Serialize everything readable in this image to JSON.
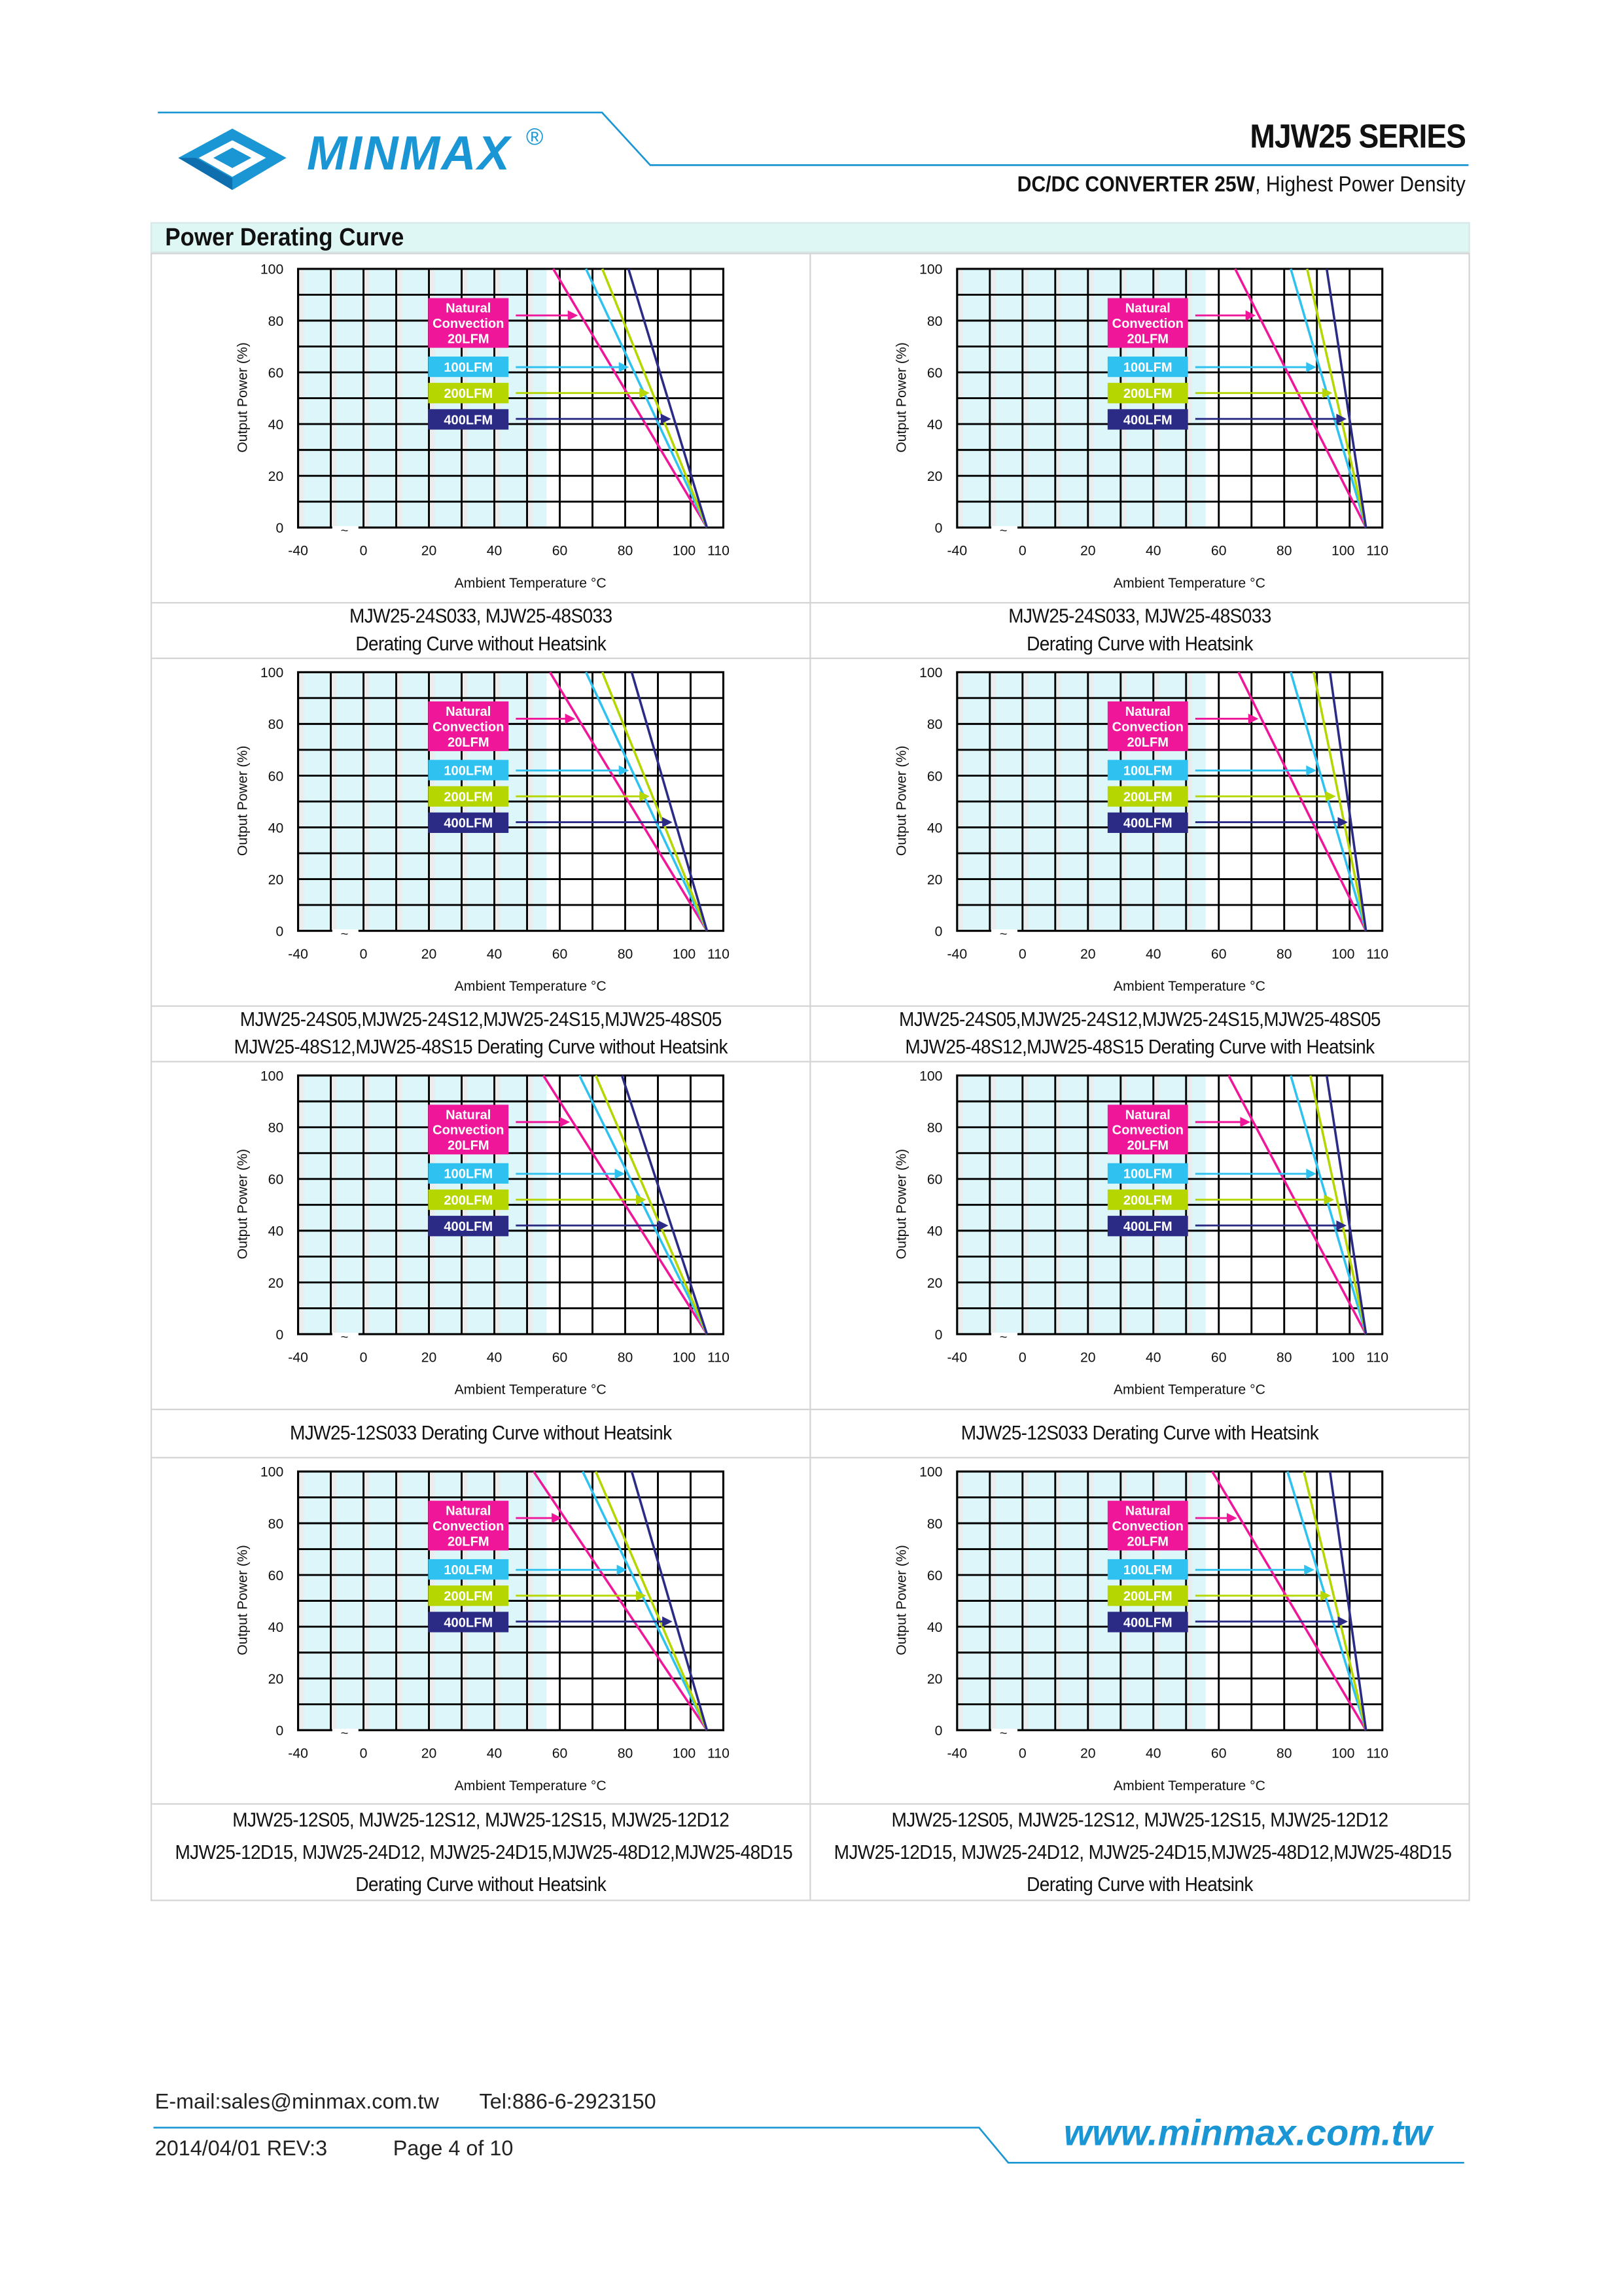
{
  "header": {
    "brand": "MINMAX",
    "registered": "®",
    "series_title": "MJW25 SERIES",
    "subtitle_bold": "DC/DC CONVERTER 25W",
    "subtitle_rest": ", Highest Power Density"
  },
  "section_title": "Power Derating Curve",
  "colors": {
    "brand": "#1a96d4",
    "natural": "#f0169a",
    "lfm100": "#2fc2f0",
    "lfm200": "#b5d600",
    "lfm400": "#2b2b85",
    "section_bg": "#dff7f4"
  },
  "chart_data": [
    {
      "type": "line",
      "caption": [
        "MJW25-24S033, MJW25-48S033",
        "Derating Curve without Heatsink"
      ],
      "full_load_limits": [
        58,
        68,
        73,
        81
      ],
      "derating_end": 105
    },
    {
      "type": "line",
      "caption": [
        "MJW25-24S033, MJW25-48S033",
        "Derating Curve with Heatsink"
      ],
      "full_load_limits": [
        65,
        82,
        87,
        93
      ],
      "derating_end": 105
    },
    {
      "type": "line",
      "caption": [
        "MJW25-24S05,MJW25-24S12,MJW25-24S15,MJW25-48S05",
        "MJW25-48S12,MJW25-48S15 Derating Curve without Heatsink"
      ],
      "full_load_limits": [
        57,
        68,
        73,
        82
      ],
      "derating_end": 105
    },
    {
      "type": "line",
      "caption": [
        "MJW25-24S05,MJW25-24S12,MJW25-24S15,MJW25-48S05",
        "MJW25-48S12,MJW25-48S15 Derating Curve with Heatsink"
      ],
      "full_load_limits": [
        66,
        82,
        89,
        94
      ],
      "derating_end": 105
    },
    {
      "type": "line",
      "caption": [
        "MJW25-12S033 Derating Curve without Heatsink"
      ],
      "full_load_limits": [
        55,
        66,
        71,
        79
      ],
      "derating_end": 105
    },
    {
      "type": "line",
      "caption": [
        "MJW25-12S033 Derating Curve with Heatsink"
      ],
      "full_load_limits": [
        63,
        82,
        88,
        93
      ],
      "derating_end": 105
    },
    {
      "type": "line",
      "caption": [
        "MJW25-12S05, MJW25-12S12, MJW25-12S15, MJW25-12D12",
        "MJW25-12D15, MJW25-24D12, MJW25-24D15,MJW25-48D12,MJW25-48D15",
        "Derating Curve without Heatsink"
      ],
      "full_load_limits": [
        52,
        67,
        71,
        82
      ],
      "derating_end": 105
    },
    {
      "type": "line",
      "caption": [
        "MJW25-12S05, MJW25-12S12, MJW25-12S15, MJW25-12D12",
        "MJW25-12D15, MJW25-24D12, MJW25-24D15,MJW25-48D12,MJW25-48D15",
        "Derating Curve with Heatsink"
      ],
      "full_load_limits": [
        58,
        81,
        86,
        94
      ],
      "derating_end": 105
    }
  ],
  "chart_common": {
    "xlabel": "Ambient Temperature °C",
    "ylabel": "Output Power  (%)",
    "xlim": [
      -20,
      110
    ],
    "ylim": [
      0,
      100
    ],
    "x_tick_labels": [
      "-40",
      "0",
      "20",
      "40",
      "60",
      "80",
      "100",
      "110"
    ],
    "y_tick_labels": [
      "0",
      "20",
      "40",
      "60",
      "80",
      "100"
    ],
    "axis_break": "~",
    "grid": true,
    "series": [
      {
        "name": "Natural Convection 20LFM",
        "label_lines": [
          "Natural",
          "Convection",
          "20LFM"
        ],
        "color_key": "natural"
      },
      {
        "name": "100LFM",
        "label_lines": [
          "100LFM"
        ],
        "color_key": "lfm100"
      },
      {
        "name": "200LFM",
        "label_lines": [
          "200LFM"
        ],
        "color_key": "lfm200"
      },
      {
        "name": "400LFM",
        "label_lines": [
          "400LFM"
        ],
        "color_key": "lfm400"
      }
    ],
    "arrow_levels": [
      82,
      62,
      52,
      42
    ]
  },
  "footer": {
    "email": "E-mail:sales@minmax.com.tw",
    "tel": "Tel:886-6-2923150",
    "date_rev": "2014/04/01 REV:3",
    "page": "Page 4 of 10",
    "url": "www.minmax.com.tw"
  }
}
